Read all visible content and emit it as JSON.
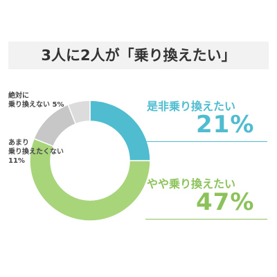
{
  "title": "3人に2人が「乗り換えたい」",
  "colors": {
    "blue": "#4fbcd0",
    "green": "#a8d47a",
    "gray_dark": "#c7c7c7",
    "gray_light": "#dcdcdc",
    "text": "#444444"
  },
  "chart_data": {
    "type": "pie",
    "donut": true,
    "title": "3人に2人が「乗り換えたい」",
    "slices": [
      {
        "label": "是非乗り換えたい",
        "value": 21,
        "display": "21%",
        "color": "#4fbcd0"
      },
      {
        "label": "やや乗り換えたい",
        "value": 47,
        "display": "47%",
        "color": "#a8d47a"
      },
      {
        "label": "あまり乗り換えたくない",
        "value": 11,
        "display": "11%",
        "color": "#c7c7c7"
      },
      {
        "label": "絶対に乗り換えない",
        "value": 5,
        "display": "5%",
        "color": "#dcdcdc"
      }
    ]
  },
  "labels": {
    "zettai_line1": "絶対に",
    "zettai_line2": "乗り換えない 5%",
    "amari_line1": "あまり",
    "amari_line2": "乗り換えたくない",
    "amari_line3": "11%",
    "zehi_name": "是非乗り換えたい",
    "zehi_pct": "21%",
    "yaya_name": "やや乗り換えたい",
    "yaya_pct": "47%"
  }
}
